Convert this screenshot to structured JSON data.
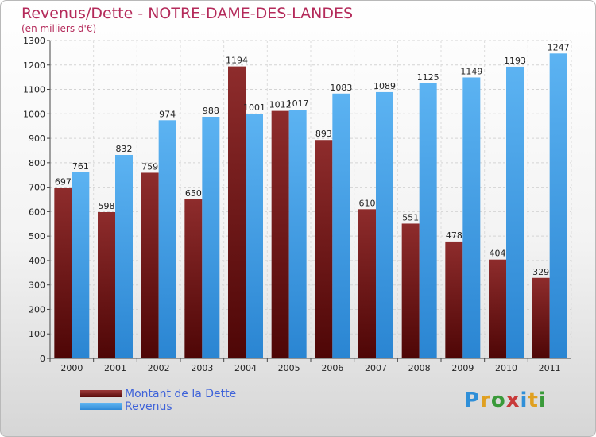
{
  "title": "Revenus/Dette - NOTRE-DAME-DES-LANDES",
  "subtitle": "(en milliers d'€)",
  "legend": {
    "debt_label": "Montant de la Dette",
    "revenue_label": "Revenus"
  },
  "logo": {
    "text": "Proxiti",
    "letter_colors": [
      "#2f8fd8",
      "#e0a020",
      "#3a9a3a",
      "#c83a3a",
      "#2f8fd8",
      "#e0a020",
      "#3a9a3a"
    ]
  },
  "colors": {
    "debt": "#6e1818",
    "revenue": "#4aa3ea",
    "title": "#b42a5a",
    "legend_text": "#3f63d9"
  },
  "chart_data": {
    "type": "bar",
    "categories": [
      "2000",
      "2001",
      "2002",
      "2003",
      "2004",
      "2005",
      "2006",
      "2007",
      "2008",
      "2009",
      "2010",
      "2011"
    ],
    "series": [
      {
        "name": "Montant de la Dette",
        "values": [
          697,
          598,
          759,
          650,
          1194,
          1012,
          893,
          610,
          551,
          478,
          404,
          329
        ]
      },
      {
        "name": "Revenus",
        "values": [
          761,
          832,
          974,
          988,
          1001,
          1017,
          1083,
          1089,
          1125,
          1149,
          1193,
          1247
        ]
      }
    ],
    "ylim": [
      0,
      1300
    ],
    "yticks": [
      0,
      100,
      200,
      300,
      400,
      500,
      600,
      700,
      800,
      900,
      1000,
      1100,
      1200,
      1300
    ],
    "grid": true,
    "legend_position": "bottom-left"
  }
}
